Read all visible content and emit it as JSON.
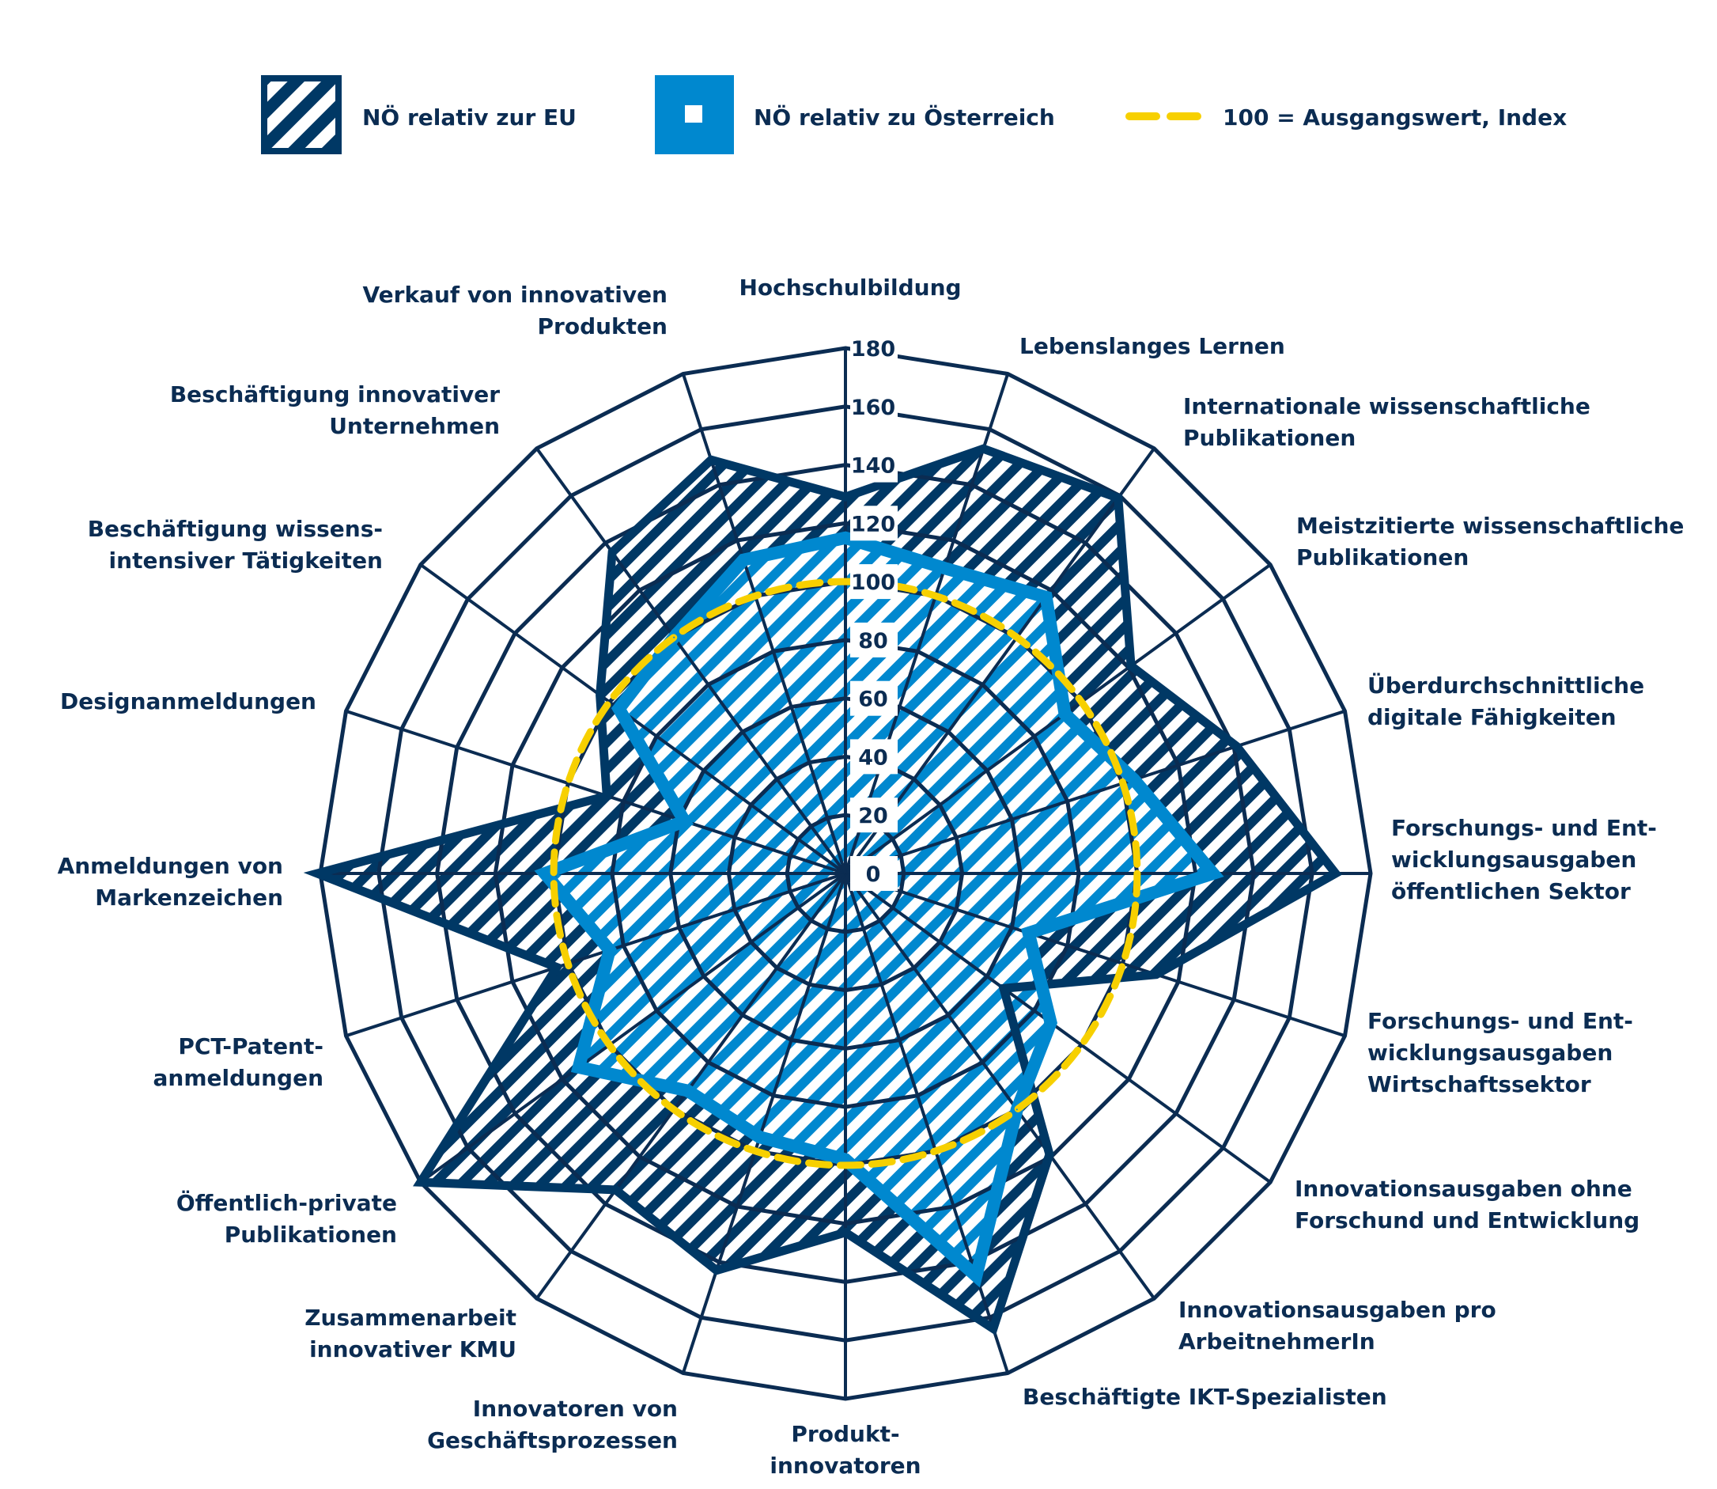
{
  "legend": {
    "eu": "NÖ relativ zur EU",
    "at": "NÖ relativ zu Österreich",
    "ref": "100 = Ausgangswert, Index"
  },
  "colors": {
    "eu": "#003865",
    "at": "#0088cf",
    "ref": "#f7d000",
    "grid": "#0b2c52"
  },
  "chart_data": {
    "type": "radar",
    "rlim": [
      0,
      180
    ],
    "ticks": [
      "0",
      "20",
      "40",
      "60",
      "80",
      "100",
      "120",
      "140",
      "160",
      "180"
    ],
    "grid": true,
    "legend_position": "top",
    "categories": [
      [
        "Hochschulbildung"
      ],
      [
        "Lebenslanges Lernen"
      ],
      [
        "Internationale wissenschaftliche",
        "Publikationen"
      ],
      [
        "Meistzitierte wissenschaftliche",
        "Publikationen"
      ],
      [
        "Überdurchschnittliche",
        "digitale Fähigkeiten"
      ],
      [
        "Forschungs- und Ent-",
        "wicklungsausgaben",
        "öffentlichen Sektor"
      ],
      [
        "Forschungs- und Ent-",
        "wicklungsausgaben",
        "Wirtschaftssektor"
      ],
      [
        "Innovationsausgaben ohne",
        "Forschund und Entwicklung"
      ],
      [
        "Innovationsausgaben pro",
        "ArbeitnehmerIn"
      ],
      [
        "Beschäftigte IKT-Spezialisten"
      ],
      [
        "Produkt-",
        "innovatoren"
      ],
      [
        "Innovatoren von",
        "Geschäftsprozessen"
      ],
      [
        "Zusammenarbeit",
        "innovativer KMU"
      ],
      [
        "Öffentlich-private",
        "Publikationen"
      ],
      [
        "PCT-Patent-",
        "anmeldungen"
      ],
      [
        "Anmeldungen von",
        "Markenzeichen"
      ],
      [
        "Designanmeldungen"
      ],
      [
        "Beschäftigung wissens-",
        "intensiver Tätigkeiten"
      ],
      [
        "Beschäftigung innovativer",
        "Unternehmen"
      ],
      [
        "Verkauf von innovativen",
        "Produkten"
      ]
    ],
    "series": [
      {
        "name": "NÖ relativ zur EU",
        "values": [
          129,
          153,
          159,
          121,
          141,
          168,
          112,
          67,
          119,
          164,
          123,
          143,
          134,
          180,
          104,
          181,
          86,
          104,
          136,
          149
        ]
      },
      {
        "name": "NÖ relativ zu Österreich",
        "values": [
          115,
          110,
          117,
          93,
          104,
          126,
          66,
          87,
          100,
          145,
          98,
          95,
          92,
          113,
          85,
          103,
          58,
          96,
          100,
          113
        ]
      }
    ],
    "reference": {
      "name": "100 = Ausgangswert, Index",
      "value": 100
    }
  }
}
